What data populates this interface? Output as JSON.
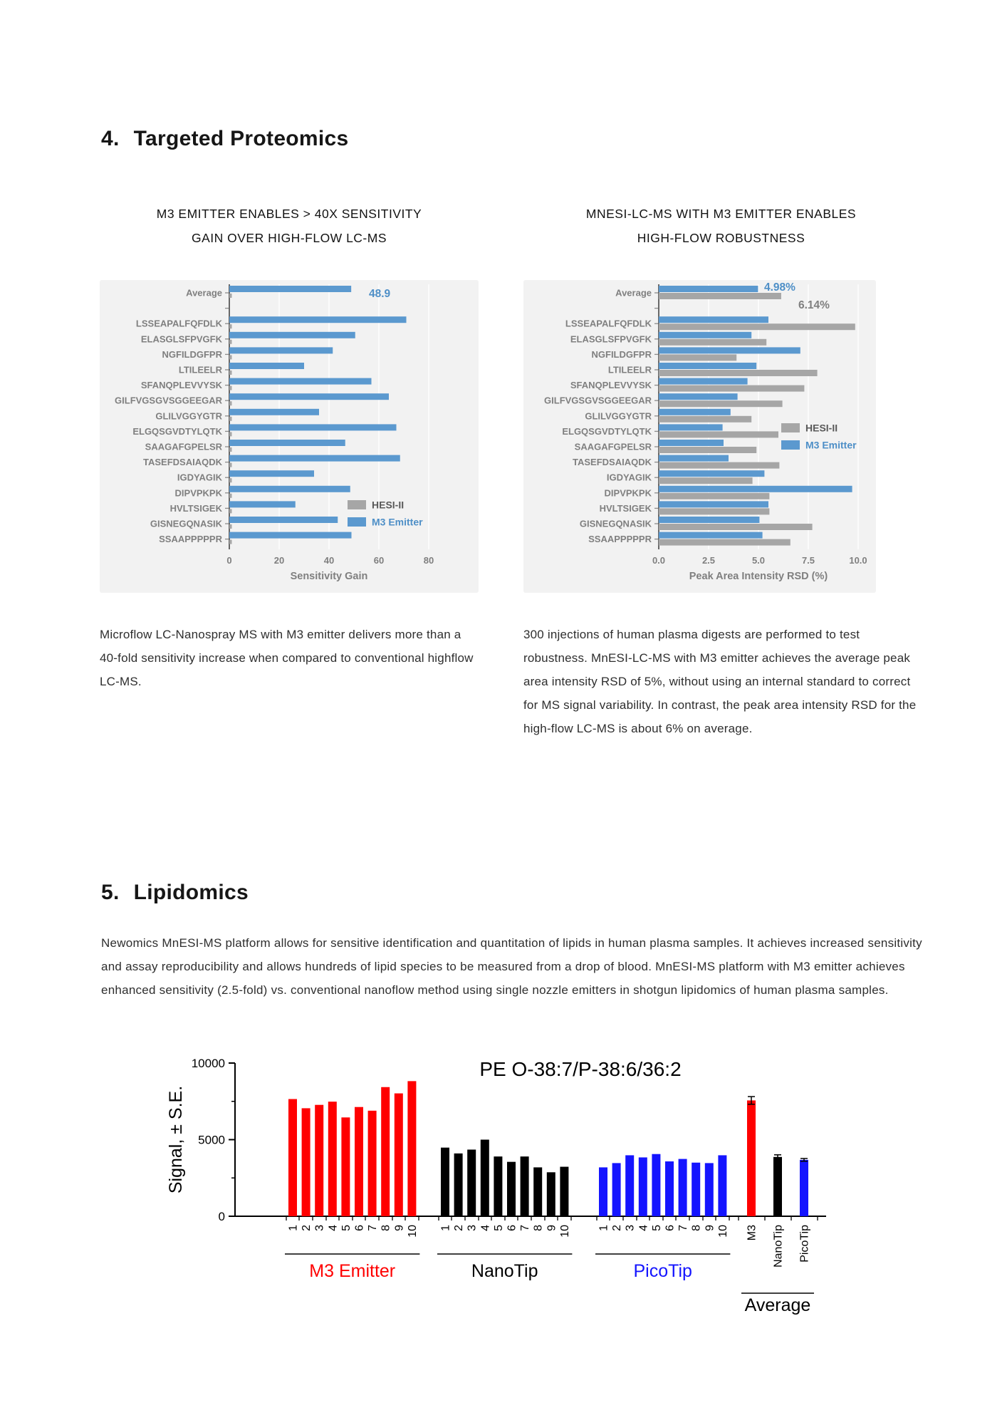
{
  "section4": {
    "number": "4.",
    "title": "Targeted Proteomics"
  },
  "left_block": {
    "title_line1": "M3 EMITTER ENABLES > 40X SENSITIVITY",
    "title_line2": "GAIN OVER HIGH-FLOW LC-MS",
    "caption": "Microflow LC-Nanospray MS with M3 emitter delivers more than a 40-fold sensitivity increase when compared to conventional highflow LC-MS."
  },
  "right_block": {
    "title_line1": "MNESI-LC-MS WITH M3 EMITTER ENABLES",
    "title_line2": "HIGH-FLOW ROBUSTNESS",
    "caption": "300 injections of human plasma digests are performed to test robustness. MnESI-LC-MS with M3 emitter achieves the average peak area intensity RSD of 5%, without using an internal standard to correct for MS signal variability. In contrast, the peak area intensity RSD for the high-flow LC-MS is about 6% on average."
  },
  "section5": {
    "number": "5.",
    "title": "Lipidomics"
  },
  "lipidomics_paragraph": "Newomics MnESI-MS platform allows for sensitive identification and quantitation of lipids in human plasma samples. It achieves increased sensitivity and assay reproducibility and allows hundreds of lipid species to be measured from a drop of blood. MnESI-MS platform with M3 emitter achieves enhanced sensitivity (2.5-fold) vs. conventional nanoflow method using single nozzle emitters in shotgun lipidomics of human plasma samples.",
  "chart_data": [
    {
      "id": "sensitivity-gain",
      "type": "bar",
      "orientation": "horizontal",
      "title": "M3 EMITTER ENABLES > 40X SENSITIVITY GAIN OVER HIGH-FLOW LC-MS",
      "xlabel": "Sensitivity Gain",
      "xlim": [
        0,
        80
      ],
      "xticks": [
        0,
        20,
        40,
        60,
        80
      ],
      "xtick_labels": [
        "0",
        "20",
        "40",
        "60",
        "80"
      ],
      "grid": true,
      "plot_bg": "#f2f2f2",
      "categories": [
        "Average",
        "LSSEAPALFQFDLK",
        "ELASGLSFPVGFK",
        "NGFILDGFPR",
        "LTILEELR",
        "SFANQPLEVVYSK",
        "GILFVGSGVSGGEEGAR",
        "GLILVGGYGTR",
        "ELGQSGVDTYLQTK",
        "SAAGAFGPELSR",
        "TASEFDSAIAQDK",
        "IGDYAGIK",
        "DIPVPKPK",
        "HVLTSIGEK",
        "GISNEGQNASIK",
        "SSAAPPPPPR"
      ],
      "series": [
        {
          "name": "M3 Emitter",
          "color": "#5b99cf",
          "values": [
            48.9,
            71,
            50.5,
            41.5,
            30,
            57,
            64,
            36,
            67,
            46.5,
            68.5,
            34,
            48.5,
            26.5,
            43.5,
            49
          ]
        },
        {
          "name": "HESI-II",
          "color": "#a6a6a6",
          "values": [
            1,
            1,
            1,
            1,
            1,
            1,
            1,
            1,
            1,
            1,
            1,
            1,
            1,
            1,
            1,
            1
          ]
        }
      ],
      "annotations": [
        {
          "text": "48.9",
          "color": "#4e8fc7"
        }
      ],
      "legend": [
        {
          "label": "HESI-II",
          "swatch": "#a6a6a6",
          "text_color": "#595959"
        },
        {
          "label": "M3 Emitter",
          "swatch": "#5b99cf",
          "text_color": "#4e8fc7"
        }
      ],
      "legend_position": "bottom-right"
    },
    {
      "id": "peak-area-rsd",
      "type": "bar",
      "orientation": "horizontal",
      "title": "MNESI-LC-MS WITH M3 EMITTER ENABLES HIGH-FLOW ROBUSTNESS",
      "xlabel": "Peak Area Intensity RSD (%)",
      "xlim": [
        0,
        10
      ],
      "xticks": [
        0,
        2.5,
        5,
        7.5,
        10
      ],
      "xtick_labels": [
        "0.0",
        "2.5",
        "5.0",
        "7.5",
        "10.0"
      ],
      "grid": true,
      "plot_bg": "#f2f2f2",
      "categories": [
        "Average",
        "LSSEAPALFQFDLK",
        "ELASGLSFPVGFK",
        "NGFILDGFPR",
        "LTILEELR",
        "SFANQPLEVVYSK",
        "GILFVGSGVSGGEEGAR",
        "GLILVGGYGTR",
        "ELGQSGVDTYLQTK",
        "SAAGAFGPELSR",
        "TASEFDSAIAQDK",
        "IGDYAGIK",
        "DIPVPKPK",
        "HVLTSIGEK",
        "GISNEGQNASIK",
        "SSAAPPPPPR"
      ],
      "series": [
        {
          "name": "M3 Emitter",
          "color": "#5b99cf",
          "values": [
            4.98,
            5.5,
            4.65,
            7.1,
            4.9,
            4.45,
            3.95,
            3.6,
            3.2,
            3.25,
            3.5,
            5.3,
            9.7,
            5.5,
            5.05,
            5.2
          ]
        },
        {
          "name": "HESI-II",
          "color": "#a6a6a6",
          "values": [
            6.14,
            9.85,
            5.4,
            3.9,
            7.95,
            7.3,
            6.2,
            4.65,
            6.0,
            4.9,
            6.05,
            4.7,
            5.55,
            5.55,
            7.7,
            6.6
          ]
        }
      ],
      "annotations": [
        {
          "text": "4.98%",
          "color": "#4e8fc7"
        },
        {
          "text": "6.14%",
          "color": "#7f7f7f"
        }
      ],
      "legend": [
        {
          "label": "HESI-II",
          "swatch": "#a6a6a6",
          "text_color": "#595959"
        },
        {
          "label": "M3 Emitter",
          "swatch": "#5b99cf",
          "text_color": "#4e8fc7"
        }
      ],
      "legend_position": "middle-right"
    },
    {
      "id": "lipidomics-signal",
      "type": "bar",
      "orientation": "vertical",
      "title": "PE O-38:7/P-38:6/36:2",
      "ylabel": "Signal, ± S.E.",
      "ylim": [
        0,
        10000
      ],
      "yticks": [
        0,
        5000,
        10000
      ],
      "ytick_labels": [
        "0",
        "5000",
        "10000"
      ],
      "minor_yticks": [
        2500,
        7500
      ],
      "groups": [
        {
          "label": "M3 Emitter",
          "label_color": "#ff0000",
          "color": "#ff0000",
          "bar_labels": [
            "1",
            "2",
            "3",
            "4",
            "5",
            "6",
            "7",
            "8",
            "9",
            "10"
          ],
          "values": [
            7650,
            7050,
            7270,
            7480,
            6450,
            7130,
            6890,
            8430,
            8020,
            8820
          ]
        },
        {
          "label": "NanoTip",
          "label_color": "#000000",
          "color": "#000000",
          "bar_labels": [
            "1",
            "2",
            "3",
            "4",
            "5",
            "6",
            "7",
            "8",
            "9",
            "10"
          ],
          "values": [
            4480,
            4100,
            4350,
            5000,
            3900,
            3550,
            3900,
            3190,
            2870,
            3230
          ]
        },
        {
          "label": "PicoTip",
          "label_color": "#1414ff",
          "color": "#1414ff",
          "bar_labels": [
            "1",
            "2",
            "3",
            "4",
            "5",
            "6",
            "7",
            "8",
            "9",
            "10"
          ],
          "values": [
            3190,
            3470,
            3980,
            3840,
            4060,
            3580,
            3740,
            3500,
            3470,
            3980
          ]
        },
        {
          "label": "Average",
          "label_color": "#000000",
          "color": "#000000",
          "bar_labels": [
            "M3",
            "NanoTip",
            "PicoTip"
          ],
          "bar_colors": [
            "#ff0000",
            "#000000",
            "#1414ff"
          ],
          "values": [
            7560,
            3870,
            3680
          ],
          "errors": [
            250,
            140,
            90
          ]
        }
      ]
    }
  ]
}
